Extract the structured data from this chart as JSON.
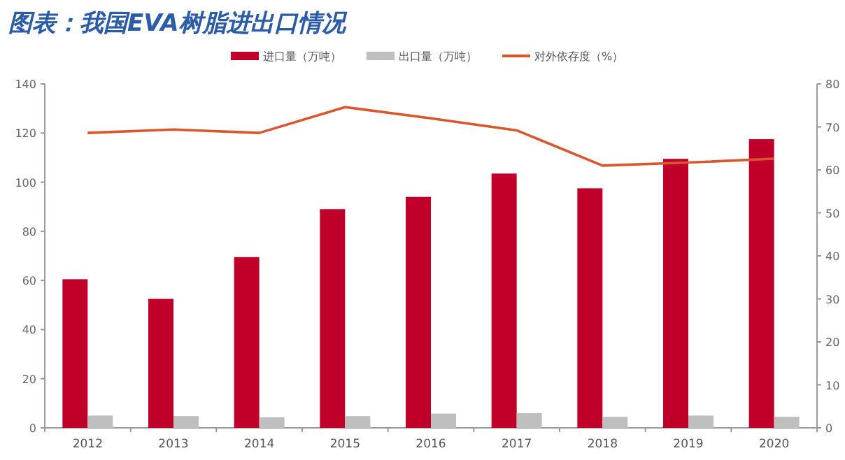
{
  "chart_data": {
    "type": "bar",
    "title": "图表：我国EVA树脂进出口情况",
    "categories": [
      "2012",
      "2013",
      "2014",
      "2015",
      "2016",
      "2017",
      "2018",
      "2019",
      "2020"
    ],
    "series": [
      {
        "name": "进口量（万吨）",
        "color": "#c00028",
        "values": [
          60.5,
          52.5,
          69.5,
          89,
          94,
          103.5,
          97.5,
          109.5,
          117.5
        ]
      },
      {
        "name": "出口量（万吨）",
        "color": "#bfbfbf",
        "values": [
          5,
          4.8,
          4.3,
          4.8,
          5.8,
          6,
          4.5,
          5,
          4.5
        ]
      },
      {
        "name": "对外依存度（%）",
        "type": "line",
        "axis": "y2",
        "color": "#d9572e",
        "values": [
          68.6,
          69.4,
          68.6,
          74.6,
          72,
          69.2,
          61,
          61.7,
          62.6
        ]
      }
    ],
    "ylim": [
      0,
      140
    ],
    "yticks": [
      0,
      20,
      40,
      60,
      80,
      100,
      120,
      140
    ],
    "y2lim": [
      0,
      80
    ],
    "y2ticks": [
      0,
      10,
      20,
      30,
      40,
      50,
      60,
      70,
      80
    ],
    "legend": "top",
    "grid": false,
    "marker": "none",
    "line_style": "solid"
  }
}
